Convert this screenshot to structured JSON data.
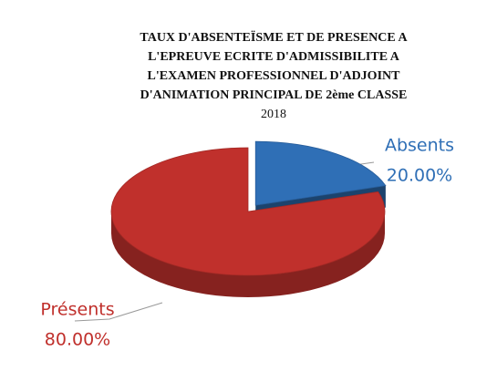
{
  "chart_data": {
    "type": "pie",
    "title": [
      "TAUX D'ABSENTEÏSME ET DE PRESENCE  A",
      "L'EPREUVE ECRITE D'ADMISSIBILITE  A",
      "L'EXAMEN PROFESSIONNEL  D'ADJOINT",
      "D'ANIMATION PRINCIPAL DE 2ème CLASSE"
    ],
    "subtitle": "2018",
    "categories": [
      "Absents",
      "Présents"
    ],
    "values": [
      20,
      80
    ],
    "value_labels": [
      "20.00%",
      "80.00%"
    ],
    "colors": [
      "#2f6fb6",
      "#c0302c"
    ]
  }
}
